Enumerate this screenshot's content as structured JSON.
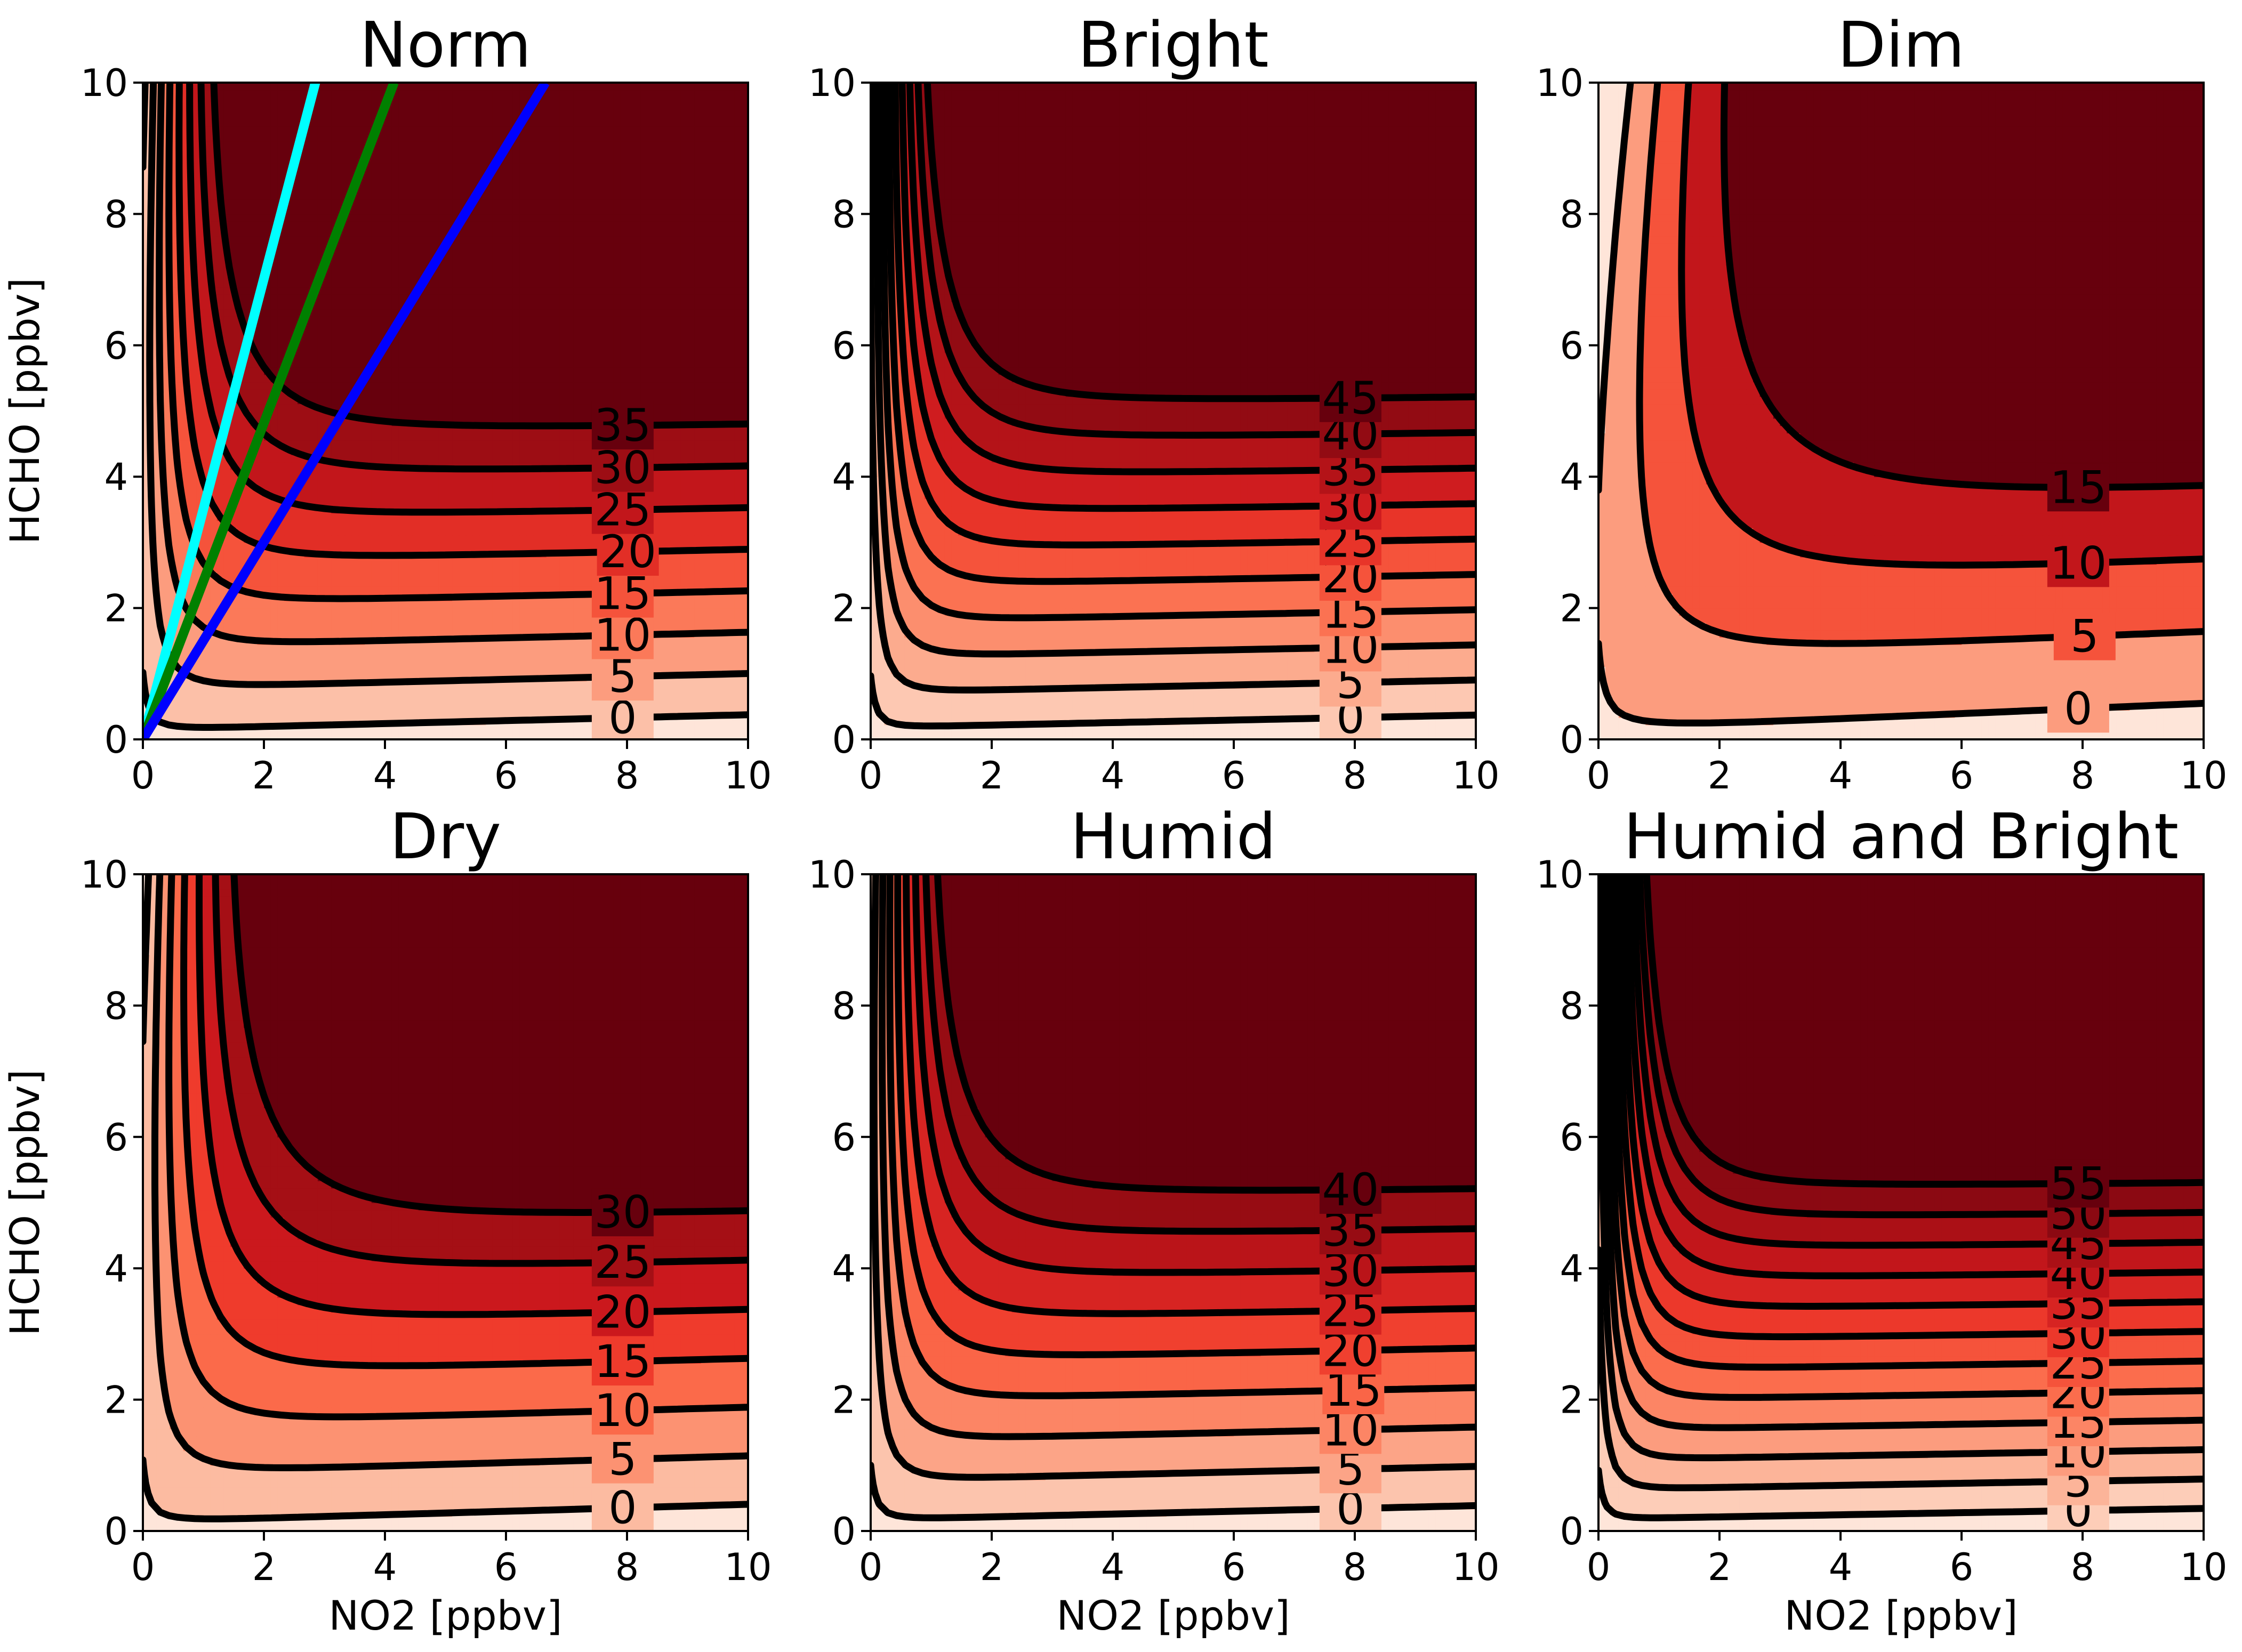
{
  "chart_data": {
    "type": "contour",
    "description_colormap": "Reds",
    "colormap_colors": [
      "#fee5d9",
      "#fcbba1",
      "#fc9272",
      "#fb6a4a",
      "#ef3b2c",
      "#cb181d",
      "#a50f15",
      "#67000d"
    ],
    "contour_line_color": "#000000",
    "grid": false,
    "panels": [
      {
        "title": "Norm",
        "xlabel": "",
        "ylabel": "HCHO [ppbv]",
        "xlim": [
          0,
          10
        ],
        "ylim": [
          0,
          10
        ],
        "xticks": [
          "0",
          "2",
          "4",
          "6",
          "8",
          "10"
        ],
        "yticks": [
          "0",
          "2",
          "4",
          "6",
          "8",
          "10"
        ],
        "levels": [
          0,
          5,
          10,
          15,
          20,
          25,
          30,
          35
        ],
        "contour_labels": [
          "0",
          "5",
          "10",
          "15",
          "20",
          "25",
          "30",
          "35"
        ],
        "field": {
          "a": 7.0,
          "b": 0.75,
          "c": 1.0,
          "d": 0.55,
          "e": 0.18
        },
        "lines": [
          {
            "name": "",
            "color": "#00ffff",
            "x": [
              0,
              2.85
            ],
            "y": [
              0,
              10
            ]
          },
          {
            "name": "",
            "color": "#008000",
            "x": [
              0,
              4.15
            ],
            "y": [
              0,
              10
            ]
          },
          {
            "name": "",
            "color": "#0000ff",
            "x": [
              0,
              6.65
            ],
            "y": [
              0,
              10
            ]
          }
        ]
      },
      {
        "title": "Bright",
        "xlabel": "",
        "ylabel": "",
        "xlim": [
          0,
          10
        ],
        "ylim": [
          0,
          10
        ],
        "xticks": [
          "0",
          "2",
          "4",
          "6",
          "8",
          "10"
        ],
        "yticks": [
          "0",
          "2",
          "4",
          "6",
          "8",
          "10"
        ],
        "levels": [
          0,
          5,
          10,
          15,
          20,
          25,
          30,
          35,
          40,
          45
        ],
        "contour_labels": [
          "0",
          "5",
          "10",
          "15",
          "20",
          "25",
          "30",
          "35",
          "40",
          "45"
        ],
        "field": {
          "a": 8.0,
          "b": 0.95,
          "c": 1.4,
          "d": 0.45,
          "e": 0.15
        },
        "lines": []
      },
      {
        "title": "Dim",
        "xlabel": "",
        "ylabel": "",
        "xlim": [
          0,
          10
        ],
        "ylim": [
          0,
          10
        ],
        "xticks": [
          "0",
          "2",
          "4",
          "6",
          "8",
          "10"
        ],
        "yticks": [
          "0",
          "2",
          "4",
          "6",
          "8",
          "10"
        ],
        "levels": [
          0,
          5,
          10,
          15
        ],
        "contour_labels": [
          "0",
          "5",
          "10",
          "15"
        ],
        "field": {
          "a": 4.0,
          "b": 0.35,
          "c": 0.6,
          "d": 0.6,
          "e": 0.22
        },
        "lines": []
      },
      {
        "title": "Dry",
        "xlabel": "NO2 [ppbv]",
        "ylabel": "HCHO [ppbv]",
        "xlim": [
          0,
          10
        ],
        "ylim": [
          0,
          10
        ],
        "xticks": [
          "0",
          "2",
          "4",
          "6",
          "8",
          "10"
        ],
        "yticks": [
          "0",
          "2",
          "4",
          "6",
          "8",
          "10"
        ],
        "levels": [
          0,
          5,
          10,
          15,
          20,
          25,
          30
        ],
        "contour_labels": [
          "0",
          "5",
          "10",
          "15",
          "20",
          "25",
          "30"
        ],
        "field": {
          "a": 6.0,
          "b": 0.6,
          "c": 0.8,
          "d": 0.5,
          "e": 0.18
        },
        "lines": []
      },
      {
        "title": "Humid",
        "xlabel": "NO2 [ppbv]",
        "ylabel": "",
        "xlim": [
          0,
          10
        ],
        "ylim": [
          0,
          10
        ],
        "xticks": [
          "0",
          "2",
          "4",
          "6",
          "8",
          "10"
        ],
        "yticks": [
          "0",
          "2",
          "4",
          "6",
          "8",
          "10"
        ],
        "levels": [
          0,
          5,
          10,
          15,
          20,
          25,
          30,
          35,
          40
        ],
        "contour_labels": [
          "0",
          "5",
          "10",
          "15",
          "20",
          "25",
          "30",
          "35",
          "40"
        ],
        "field": {
          "a": 7.2,
          "b": 0.85,
          "c": 1.2,
          "d": 0.5,
          "e": 0.16
        },
        "lines": []
      },
      {
        "title": "Humid and Bright",
        "xlabel": "NO2 [ppbv]",
        "ylabel": "",
        "xlim": [
          0,
          10
        ],
        "ylim": [
          0,
          10
        ],
        "xticks": [
          "0",
          "2",
          "4",
          "6",
          "8",
          "10"
        ],
        "yticks": [
          "0",
          "2",
          "4",
          "6",
          "8",
          "10"
        ],
        "levels": [
          0,
          5,
          10,
          15,
          20,
          25,
          30,
          35,
          40,
          45,
          50,
          55
        ],
        "contour_labels": [
          "0",
          "5",
          "10",
          "15",
          "20",
          "25",
          "30",
          "35",
          "40",
          "45",
          "50",
          "55"
        ],
        "field": {
          "a": 9.5,
          "b": 1.1,
          "c": 1.7,
          "d": 0.42,
          "e": 0.14
        },
        "lines": []
      }
    ]
  }
}
